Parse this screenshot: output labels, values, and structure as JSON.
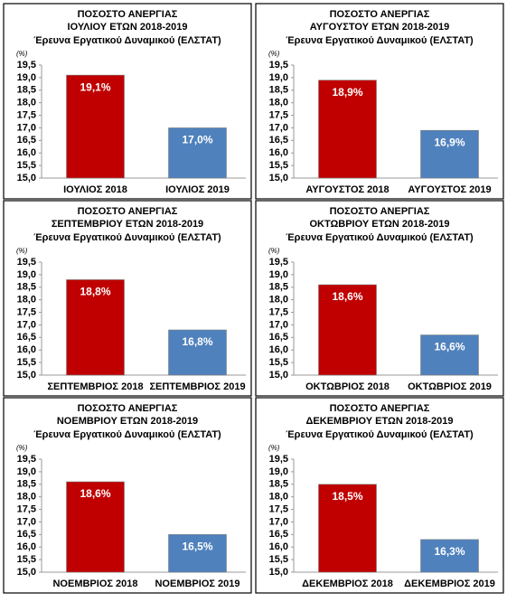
{
  "chart_data": [
    {
      "type": "bar",
      "title": "ΠΟΣΟΣΤΟ ΑΝΕΡΓΙΑΣ",
      "subtitle": "ΙΟΥΛΙΟΥ ΕΤΩΝ 2018-2019",
      "source": "Έρευνα Εργατικού Δυναμικού (ΕΛΣΤΑΤ)",
      "y_unit": "(%)",
      "categories": [
        "ΙΟΥΛΙΟΣ 2018",
        "ΙΟΥΛΙΟΣ 2019"
      ],
      "values": [
        19.1,
        17.0
      ],
      "value_labels": [
        "19,1%",
        "17,0%"
      ],
      "colors": [
        "#c00000",
        "#4f81bd"
      ],
      "ylim": [
        15,
        19.5
      ],
      "yticks": [
        {
          "value": 15,
          "label": "15,0"
        },
        {
          "value": 15.5,
          "label": "15,5"
        },
        {
          "value": 16,
          "label": "16,0"
        },
        {
          "value": 16.5,
          "label": "16,5"
        },
        {
          "value": 17,
          "label": "17,0"
        },
        {
          "value": 17.5,
          "label": "17,5"
        },
        {
          "value": 18,
          "label": "18,0"
        },
        {
          "value": 18.5,
          "label": "18,5"
        },
        {
          "value": 19,
          "label": "19,0"
        },
        {
          "value": 19.5,
          "label": "19,5"
        }
      ]
    },
    {
      "type": "bar",
      "title": "ΠΟΣΟΣΤΟ ΑΝΕΡΓΙΑΣ",
      "subtitle": "ΑΥΓΟΥΣΤΟΥ ΕΤΩΝ 2018-2019",
      "source": "Έρευνα Εργατικού Δυναμικού (ΕΛΣΤΑΤ)",
      "y_unit": "(%)",
      "categories": [
        "ΑΥΓΟΥΣΤΟΣ 2018",
        "ΑΥΓΟΥΣΤΟΣ 2019"
      ],
      "values": [
        18.9,
        16.9
      ],
      "value_labels": [
        "18,9%",
        "16,9%"
      ],
      "colors": [
        "#c00000",
        "#4f81bd"
      ],
      "ylim": [
        15,
        19.5
      ],
      "yticks": [
        {
          "value": 15,
          "label": "15,0"
        },
        {
          "value": 15.5,
          "label": "15,5"
        },
        {
          "value": 16,
          "label": "16,0"
        },
        {
          "value": 16.5,
          "label": "16,5"
        },
        {
          "value": 17,
          "label": "17,0"
        },
        {
          "value": 17.5,
          "label": "17,5"
        },
        {
          "value": 18,
          "label": "18,0"
        },
        {
          "value": 18.5,
          "label": "18,5"
        },
        {
          "value": 19,
          "label": "19,0"
        },
        {
          "value": 19.5,
          "label": "19,5"
        }
      ]
    },
    {
      "type": "bar",
      "title": "ΠΟΣΟΣΤΟ ΑΝΕΡΓΙΑΣ",
      "subtitle": "ΣΕΠΤΕΜΒΡΙΟΥ ΕΤΩΝ 2018-2019",
      "source": "Έρευνα Εργατικού Δυναμικού (ΕΛΣΤΑΤ)",
      "y_unit": "(%)",
      "categories": [
        "ΣΕΠΤΕΜΒΡΙΟΣ 2018",
        "ΣΕΠΤΕΜΒΡΙΟΣ 2019"
      ],
      "values": [
        18.8,
        16.8
      ],
      "value_labels": [
        "18,8%",
        "16,8%"
      ],
      "colors": [
        "#c00000",
        "#4f81bd"
      ],
      "ylim": [
        15,
        19.5
      ],
      "yticks": [
        {
          "value": 15,
          "label": "15,0"
        },
        {
          "value": 15.5,
          "label": "15,5"
        },
        {
          "value": 16,
          "label": "16,0"
        },
        {
          "value": 16.5,
          "label": "16,5"
        },
        {
          "value": 17,
          "label": "17,0"
        },
        {
          "value": 17.5,
          "label": "17,5"
        },
        {
          "value": 18,
          "label": "18,0"
        },
        {
          "value": 18.5,
          "label": "18,5"
        },
        {
          "value": 19,
          "label": "19,0"
        },
        {
          "value": 19.5,
          "label": "19,5"
        }
      ]
    },
    {
      "type": "bar",
      "title": "ΠΟΣΟΣΤΟ ΑΝΕΡΓΙΑΣ",
      "subtitle": "ΟΚΤΩΒΡΙΟΥ ΕΤΩΝ 2018-2019",
      "source": "Έρευνα Εργατικού Δυναμικού (ΕΛΣΤΑΤ)",
      "y_unit": "(%)",
      "categories": [
        "ΟΚΤΩΒΡΙΟΣ 2018",
        "ΟΚΤΩΒΡΙΟΣ 2019"
      ],
      "values": [
        18.6,
        16.6
      ],
      "value_labels": [
        "18,6%",
        "16,6%"
      ],
      "colors": [
        "#c00000",
        "#4f81bd"
      ],
      "ylim": [
        15,
        19.5
      ],
      "yticks": [
        {
          "value": 15,
          "label": "15,0"
        },
        {
          "value": 15.5,
          "label": "15,5"
        },
        {
          "value": 16,
          "label": "16,0"
        },
        {
          "value": 16.5,
          "label": "16,5"
        },
        {
          "value": 17,
          "label": "17,0"
        },
        {
          "value": 17.5,
          "label": "17,5"
        },
        {
          "value": 18,
          "label": "18,0"
        },
        {
          "value": 18.5,
          "label": "18,5"
        },
        {
          "value": 19,
          "label": "19,0"
        },
        {
          "value": 19.5,
          "label": "19,5"
        }
      ]
    },
    {
      "type": "bar",
      "title": "ΠΟΣΟΣΤΟ ΑΝΕΡΓΙΑΣ",
      "subtitle": "ΝΟΕΜΒΡΙΟΥ ΕΤΩΝ 2018-2019",
      "source": "Έρευνα Εργατικού Δυναμικού (ΕΛΣΤΑΤ)",
      "y_unit": "(%)",
      "categories": [
        "ΝΟΕΜΒΡΙΟΣ 2018",
        "ΝΟΕΜΒΡΙΟΣ 2019"
      ],
      "values": [
        18.6,
        16.5
      ],
      "value_labels": [
        "18,6%",
        "16,5%"
      ],
      "colors": [
        "#c00000",
        "#4f81bd"
      ],
      "ylim": [
        15,
        19.5
      ],
      "yticks": [
        {
          "value": 15,
          "label": "15,0"
        },
        {
          "value": 15.5,
          "label": "15,5"
        },
        {
          "value": 16,
          "label": "16,0"
        },
        {
          "value": 16.5,
          "label": "16,5"
        },
        {
          "value": 17,
          "label": "17,0"
        },
        {
          "value": 17.5,
          "label": "17,5"
        },
        {
          "value": 18,
          "label": "18,0"
        },
        {
          "value": 18.5,
          "label": "18,5"
        },
        {
          "value": 19,
          "label": "19,0"
        },
        {
          "value": 19.5,
          "label": "19,5"
        }
      ]
    },
    {
      "type": "bar",
      "title": "ΠΟΣΟΣΤΟ ΑΝΕΡΓΙΑΣ",
      "subtitle": "ΔΕΚΕΜΒΡΙΟΥ ΕΤΩΝ 2018-2019",
      "source": "Έρευνα Εργατικού Δυναμικού (ΕΛΣΤΑΤ)",
      "y_unit": "(%)",
      "categories": [
        "ΔΕΚΕΜΒΡΙΟΣ 2018",
        "ΔΕΚΕΜΒΡΙΟΣ 2019"
      ],
      "values": [
        18.5,
        16.3
      ],
      "value_labels": [
        "18,5%",
        "16,3%"
      ],
      "colors": [
        "#c00000",
        "#4f81bd"
      ],
      "ylim": [
        15,
        19.5
      ],
      "yticks": [
        {
          "value": 15,
          "label": "15,0"
        },
        {
          "value": 15.5,
          "label": "15,5"
        },
        {
          "value": 16,
          "label": "16,0"
        },
        {
          "value": 16.5,
          "label": "16,5"
        },
        {
          "value": 17,
          "label": "17,0"
        },
        {
          "value": 17.5,
          "label": "17,5"
        },
        {
          "value": 18,
          "label": "18,0"
        },
        {
          "value": 18.5,
          "label": "18,5"
        },
        {
          "value": 19,
          "label": "19,0"
        },
        {
          "value": 19.5,
          "label": "19,5"
        }
      ]
    }
  ]
}
